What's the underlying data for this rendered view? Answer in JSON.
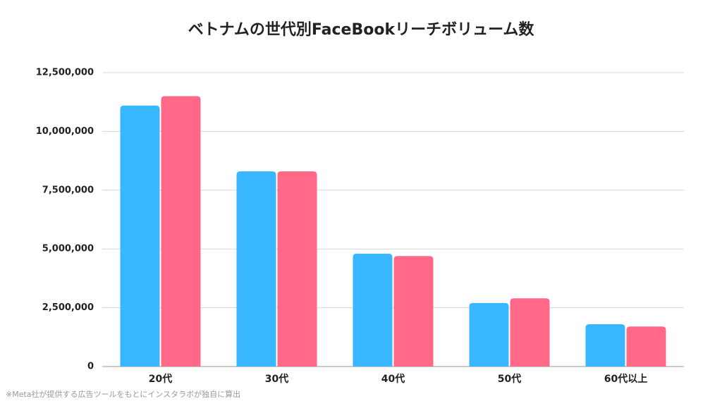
{
  "chart_data": {
    "type": "bar",
    "title": "ベトナムの世代別FaceBookリーチボリューム数",
    "categories": [
      "20代",
      "30代",
      "40代",
      "50代",
      "60代以上"
    ],
    "series": [
      {
        "color": "#38b6ff",
        "values": [
          11100000,
          8300000,
          4800000,
          2700000,
          1800000
        ]
      },
      {
        "color": "#ff6987",
        "values": [
          11500000,
          8300000,
          4700000,
          2900000,
          1700000
        ]
      }
    ],
    "ylim": [
      0,
      12500000
    ],
    "yticks": [
      0,
      {
        "value": 2500000,
        "label": "2,500,000"
      },
      {
        "value": 5000000,
        "label": "5,000,000"
      },
      {
        "value": 7500000,
        "label": "7,500,000"
      },
      {
        "value": 10000000,
        "label": "10,000,000"
      },
      {
        "value": 12500000,
        "label": "12,500,000"
      }
    ],
    "grid": true,
    "footnote": "※Meta社が提供する広告ツールをもとにインスタラボが独自に算出"
  }
}
